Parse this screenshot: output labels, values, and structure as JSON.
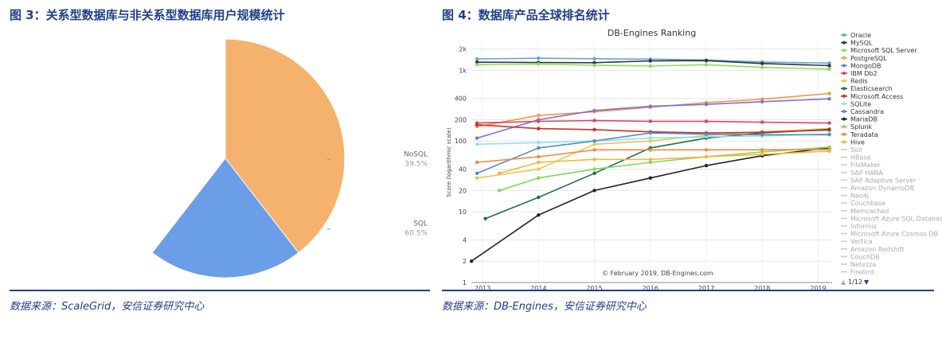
{
  "fig3": {
    "title": "图 3：关系型数据库与非关系型数据库用户规模统计",
    "source": "数据来源：ScaleGrid，安信证券研究中心",
    "chart_data": {
      "type": "pie",
      "slices": [
        {
          "name": "SQL",
          "value": 60.5,
          "label": "60.5%",
          "color": "#6a9ee8"
        },
        {
          "name": "NoSQL",
          "value": 39.5,
          "label": "39.5%",
          "color": "#f4b26d"
        }
      ]
    }
  },
  "fig4": {
    "title": "图 4：数据库产品全球排名统计",
    "source": "数据来源：DB-Engines，安信证券研究中心",
    "chart_data": {
      "type": "line",
      "title": "DB-Engines Ranking",
      "ylabel": "Score (logarithmic scale)",
      "yscale": "log",
      "ylim": [
        1,
        2500
      ],
      "xlim": [
        2012.8,
        2019.25
      ],
      "yticks": [
        1,
        2,
        4,
        10,
        20,
        40,
        100,
        200,
        400,
        1000,
        2000
      ],
      "ytick_labels": [
        "1",
        "2",
        "4",
        "10",
        "20",
        "40",
        "100",
        "200",
        "400",
        "1k",
        "2k"
      ],
      "xticks": [
        2013,
        2014,
        2015,
        2016,
        2017,
        2018,
        2019
      ],
      "xtick_labels": [
        "2013",
        "2014",
        "2015",
        "2016",
        "2017",
        "2018",
        "2019"
      ],
      "annotation": "© February 2019, DB-Engines.com",
      "page_indicator": "1/12",
      "series": [
        {
          "name": "Oracle",
          "color": "#5ea6de",
          "x": [
            2012.9,
            2014,
            2015,
            2016,
            2017,
            2018,
            2019.2
          ],
          "y": [
            1450,
            1480,
            1460,
            1440,
            1400,
            1310,
            1264
          ]
        },
        {
          "name": "MySQL",
          "color": "#333333",
          "x": [
            2012.9,
            2014,
            2015,
            2016,
            2017,
            2018,
            2019.2
          ],
          "y": [
            1300,
            1290,
            1280,
            1360,
            1370,
            1250,
            1167
          ]
        },
        {
          "name": "Microsoft SQL Server",
          "color": "#8fdc5c",
          "x": [
            2012.9,
            2014,
            2015,
            2016,
            2017,
            2018,
            2019.2
          ],
          "y": [
            1200,
            1230,
            1180,
            1150,
            1200,
            1100,
            1040
          ]
        },
        {
          "name": "PostgreSQL",
          "color": "#f7963f",
          "x": [
            2012.9,
            2014,
            2015,
            2016,
            2017,
            2018,
            2019.2
          ],
          "y": [
            160,
            230,
            260,
            300,
            350,
            390,
            470
          ]
        },
        {
          "name": "MongoDB",
          "color": "#7a6fe3",
          "x": [
            2012.9,
            2014,
            2015,
            2016,
            2017,
            2018,
            2019.2
          ],
          "y": [
            110,
            200,
            270,
            310,
            330,
            360,
            395
          ]
        },
        {
          "name": "IBM Db2",
          "color": "#e3405c",
          "x": [
            2012.9,
            2014,
            2015,
            2016,
            2017,
            2018,
            2019.2
          ],
          "y": [
            180,
            190,
            195,
            190,
            190,
            185,
            180
          ]
        },
        {
          "name": "Redis",
          "color": "#e7c94a",
          "x": [
            2012.9,
            2014,
            2015,
            2016,
            2017,
            2018,
            2019.2
          ],
          "y": [
            30,
            40,
            90,
            100,
            120,
            135,
            150
          ]
        },
        {
          "name": "Elasticsearch",
          "color": "#1f6e5b",
          "x": [
            2013.05,
            2014,
            2015,
            2016,
            2017,
            2018,
            2019.2
          ],
          "y": [
            8,
            16,
            35,
            80,
            110,
            130,
            146
          ]
        },
        {
          "name": "Microsoft Access",
          "color": "#c9302c",
          "x": [
            2012.9,
            2014,
            2015,
            2016,
            2017,
            2018,
            2019.2
          ],
          "y": [
            170,
            150,
            145,
            135,
            130,
            133,
            143
          ]
        },
        {
          "name": "SQLite",
          "color": "#8fe2ee",
          "x": [
            2012.9,
            2014,
            2015,
            2016,
            2017,
            2018,
            2019.2
          ],
          "y": [
            90,
            95,
            100,
            110,
            115,
            118,
            126
          ]
        },
        {
          "name": "Cassandra",
          "color": "#4f8fc7",
          "x": [
            2012.9,
            2014,
            2015,
            2016,
            2017,
            2018,
            2019.2
          ],
          "y": [
            35,
            80,
            100,
            130,
            125,
            123,
            123
          ]
        },
        {
          "name": "MariaDB",
          "color": "#222222",
          "x": [
            2012.8,
            2014,
            2015,
            2016,
            2017,
            2018,
            2019.2
          ],
          "y": [
            2,
            9,
            20,
            30,
            45,
            62,
            80
          ]
        },
        {
          "name": "Splunk",
          "color": "#7fd957",
          "x": [
            2013.3,
            2014,
            2015,
            2016,
            2017,
            2018,
            2019.2
          ],
          "y": [
            20,
            30,
            40,
            50,
            60,
            70,
            82
          ]
        },
        {
          "name": "Teradata",
          "color": "#f08a3c",
          "x": [
            2012.9,
            2014,
            2015,
            2016,
            2017,
            2018,
            2019.2
          ],
          "y": [
            50,
            60,
            75,
            75,
            75,
            75,
            76
          ]
        },
        {
          "name": "Hive",
          "color": "#f0b93a",
          "x": [
            2013.3,
            2014,
            2015,
            2016,
            2017,
            2018,
            2019.2
          ],
          "y": [
            35,
            50,
            55,
            55,
            60,
            65,
            72
          ]
        }
      ],
      "legend_inactive": [
        "Solr",
        "HBase",
        "FileMaker",
        "SAP HANA",
        "SAP Adaptive Server",
        "Amazon DynamoDB",
        "Neo4j",
        "Couchbase",
        "Memcached",
        "Microsoft Azure SQL Database",
        "Informix",
        "Microsoft Azure Cosmos DB",
        "Vertica",
        "Amazon Redshift",
        "CouchDB",
        "Netezza",
        "Firebird"
      ]
    }
  }
}
